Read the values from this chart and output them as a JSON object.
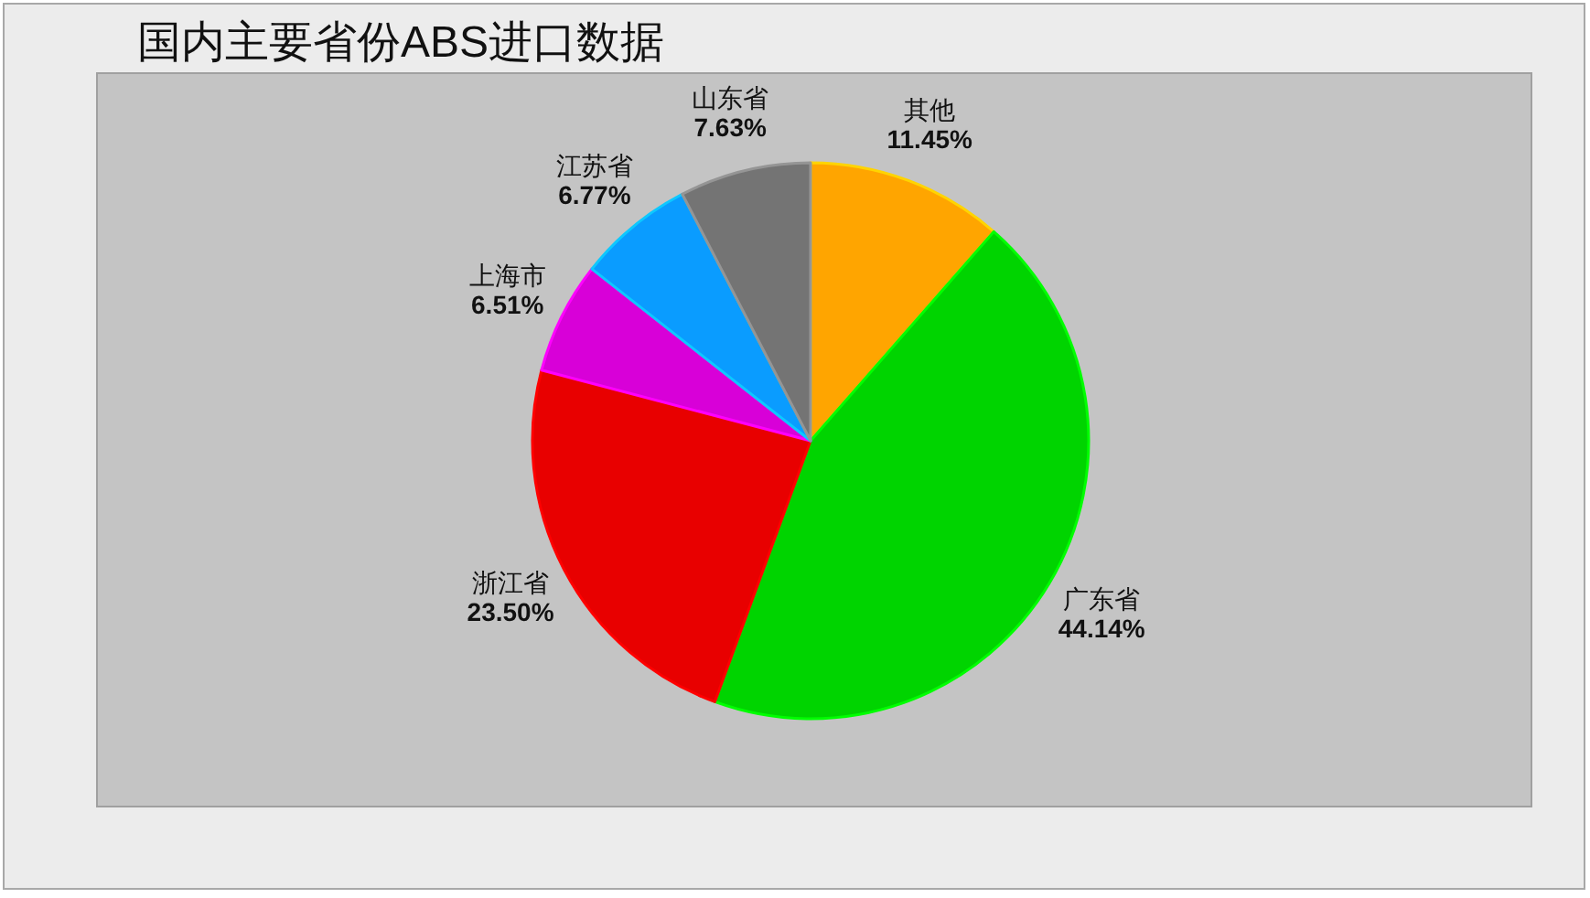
{
  "chart_data": {
    "type": "pie",
    "title": "国内主要省份ABS进口数据",
    "categories": [
      "其他",
      "广东省",
      "浙江省",
      "上海市",
      "江苏省",
      "山东省"
    ],
    "values": [
      11.45,
      44.14,
      23.5,
      6.51,
      6.77,
      7.63
    ],
    "colors": [
      "#ffa500",
      "#00d400",
      "#e80000",
      "#d800d8",
      "#0a9cff",
      "#747474"
    ],
    "value_labels": [
      "11.45%",
      "44.14%",
      "23.50%",
      "6.51%",
      "6.77%",
      "7.63%"
    ]
  }
}
